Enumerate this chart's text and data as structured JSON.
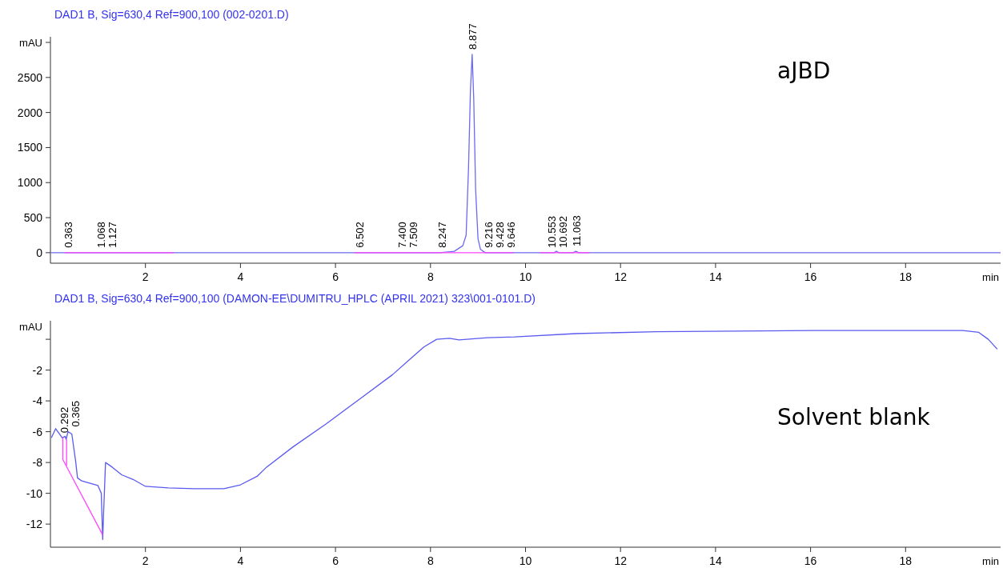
{
  "chart_data": [
    {
      "type": "line",
      "title": "DAD1 B, Sig=630,4 Ref=900,100 (002-0201.D)",
      "xlabel": "min",
      "ylabel": "mAU",
      "xlim": [
        0,
        20
      ],
      "xticks": [
        2,
        4,
        6,
        8,
        10,
        12,
        14,
        16,
        18
      ],
      "ylim": [
        -150,
        3080
      ],
      "yticks": [
        0,
        500,
        1000,
        1500,
        2000,
        2500,
        {
          "value": 3000,
          "label": null
        }
      ],
      "grid": false,
      "series": [
        {
          "color": "#6a6af2",
          "x": [
            0,
            8.2,
            8.5,
            8.68,
            8.75,
            8.8,
            8.84,
            8.877,
            8.91,
            8.95,
            9.0,
            9.05,
            9.15,
            10.6,
            10.65,
            10.7,
            11.0,
            11.06,
            11.12,
            20
          ],
          "values": [
            0,
            0,
            20,
            100,
            250,
            1200,
            2300,
            2830,
            2200,
            900,
            200,
            50,
            0,
            0,
            20,
            0,
            0,
            20,
            0,
            0
          ]
        },
        {
          "color": "#ff44ff",
          "x": [
            0.3,
            2.6
          ],
          "values": [
            0,
            0
          ]
        },
        {
          "color": "#ff44ff",
          "x": [
            6.4,
            9.75
          ],
          "values": [
            0,
            0
          ]
        },
        {
          "color": "#ff44ff",
          "x": [
            10.3,
            11.35
          ],
          "values": [
            0,
            0
          ]
        }
      ],
      "annotations": [
        "aJBD",
        {
          "text": "0.363",
          "x": 0.363,
          "y": 0
        },
        {
          "text": "1.068",
          "x": 1.068,
          "y": 0
        },
        {
          "text": "1.127",
          "x": 1.127,
          "y": 0
        },
        {
          "text": "6.502",
          "x": 6.502,
          "y": 0
        },
        {
          "text": "7.400",
          "x": 7.4,
          "y": 0
        },
        {
          "text": "7.509",
          "x": 7.509,
          "y": 0
        },
        {
          "text": "8.247",
          "x": 8.247,
          "y": 0
        },
        {
          "text": "8.877",
          "x": 8.877,
          "y": 2830
        },
        {
          "text": "9.216",
          "x": 9.216,
          "y": 0
        },
        {
          "text": "9.428",
          "x": 9.428,
          "y": 0
        },
        {
          "text": "9.646",
          "x": 9.646,
          "y": 0
        },
        {
          "text": "10.553",
          "x": 10.553,
          "y": 0
        },
        {
          "text": "10.692",
          "x": 10.692,
          "y": 0
        },
        {
          "text": "11.063",
          "x": 11.063,
          "y": 20
        }
      ]
    },
    {
      "type": "line",
      "title": "DAD1 B, Sig=630,4 Ref=900,100 (DAMON-EE\\DUMITRU_HPLC (APRIL 2021) 323\\001-0101.D)",
      "xlabel": "min",
      "ylabel": "mAU",
      "xlim": [
        0,
        20
      ],
      "xticks": [
        2,
        4,
        6,
        8,
        10,
        12,
        14,
        16,
        18
      ],
      "ylim": [
        -13.5,
        1.2
      ],
      "yticks": [
        -12,
        -10,
        -8,
        -6,
        -4,
        -2,
        {
          "value": 0,
          "label": null
        }
      ],
      "grid": false,
      "series": [
        {
          "color": "#5a5af0",
          "x": [
            0.02,
            0.11,
            0.25,
            0.31,
            0.33,
            0.37,
            0.45,
            0.53,
            0.57,
            0.66,
            1.0,
            1.07,
            1.1,
            1.12,
            1.16,
            1.3,
            1.5,
            1.74,
            2.0,
            2.48,
            3.03,
            3.65,
            4.0,
            4.35,
            4.55,
            5.1,
            5.8,
            6.5,
            7.2,
            7.86,
            8.13,
            8.4,
            8.6,
            9.2,
            9.77,
            11.06,
            12.76,
            16.15,
            19.2,
            19.54,
            19.74,
            19.93
          ],
          "values": [
            -6.4,
            -5.8,
            -6.4,
            -6.3,
            -6.5,
            -6.0,
            -6.15,
            -7.9,
            -9.0,
            -9.2,
            -9.5,
            -10.0,
            -13.0,
            -11.2,
            -8.0,
            -8.3,
            -8.8,
            -9.1,
            -9.55,
            -9.65,
            -9.7,
            -9.7,
            -9.45,
            -8.9,
            -8.3,
            -7.0,
            -5.5,
            -3.9,
            -2.3,
            -0.5,
            0.0,
            0.06,
            -0.04,
            0.1,
            0.15,
            0.37,
            0.49,
            0.57,
            0.57,
            0.45,
            0.0,
            -0.64
          ]
        },
        {
          "color": "#ff44ff",
          "x": [
            0.26,
            0.26,
            1.1
          ],
          "values": [
            -6.4,
            -7.8,
            -12.7
          ]
        },
        {
          "color": "#ff44ff",
          "x": [
            0.34,
            0.34
          ],
          "values": [
            -6.5,
            -8.2
          ]
        }
      ],
      "annotations": [
        "Solvent blank",
        {
          "text": "0.292",
          "x": 0.292,
          "y": -6.4
        },
        {
          "text": "0.365",
          "x": 0.365,
          "y": -6.0
        }
      ]
    }
  ]
}
